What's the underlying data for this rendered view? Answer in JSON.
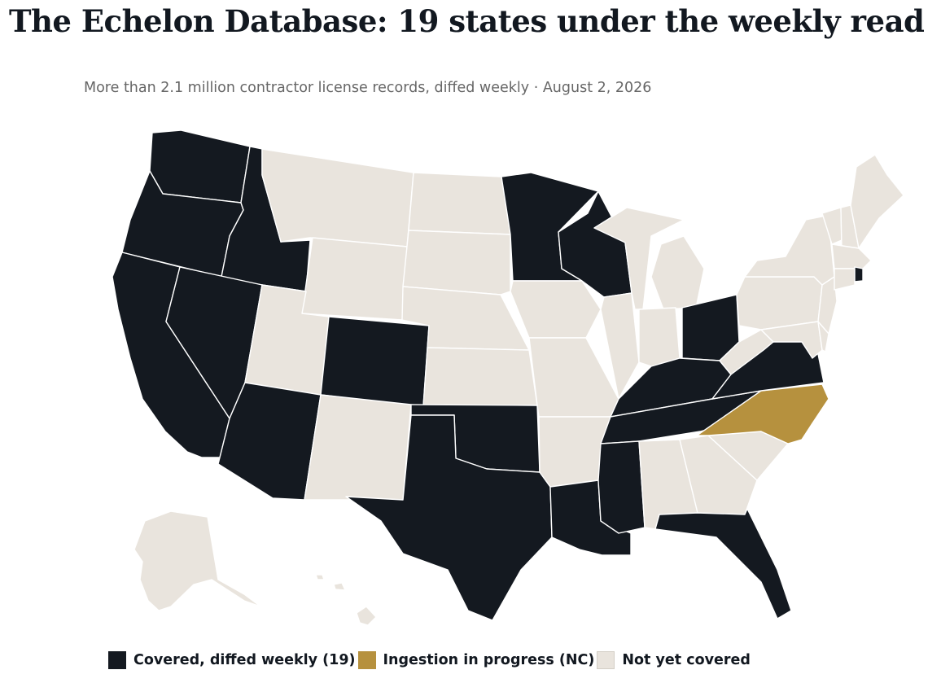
{
  "header": {
    "title": "The Echelon Database: 19 states under the weekly read",
    "subtitle": "More than 2.1 million contractor license records, diffed weekly · August 2, 2026"
  },
  "colors": {
    "covered": "#141920",
    "in_progress": "#b6913e",
    "not_covered": "#e9e4dd",
    "border": "#ffffff"
  },
  "legend": [
    {
      "key": "covered",
      "label": "Covered, diffed weekly (19)"
    },
    {
      "key": "in_progress",
      "label": "Ingestion in progress (NC)"
    },
    {
      "key": "not_covered",
      "label": "Not yet covered"
    }
  ],
  "states": {
    "covered": [
      "WA",
      "OR",
      "CA",
      "ID",
      "NV",
      "AZ",
      "CO",
      "TX",
      "OK",
      "LA",
      "MN",
      "WI",
      "MS",
      "TN",
      "KY",
      "OH",
      "VA",
      "FL",
      "RI"
    ],
    "in_progress": [
      "NC"
    ],
    "not_covered": [
      "MT",
      "ND",
      "SD",
      "WY",
      "UT",
      "NE",
      "KS",
      "NM",
      "IA",
      "MO",
      "AR",
      "IL",
      "IN",
      "MI",
      "AL",
      "GA",
      "SC",
      "WV",
      "PA",
      "NY",
      "VT",
      "NH",
      "ME",
      "MA",
      "CT",
      "NJ",
      "DE",
      "MD",
      "AK",
      "HI"
    ]
  }
}
